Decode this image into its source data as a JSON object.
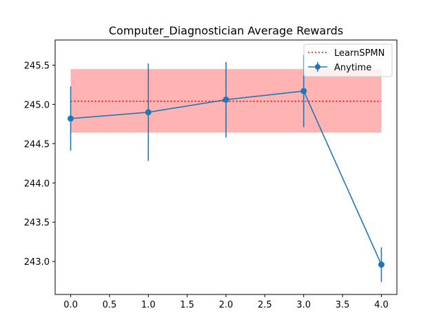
{
  "chart_data": {
    "type": "line",
    "title": "Computer_Diagnostician Average Rewards",
    "xlabel": "",
    "ylabel": "",
    "xlim": [
      -0.2,
      4.2
    ],
    "ylim": [
      242.58,
      245.82
    ],
    "x_ticks": [
      0.0,
      0.5,
      1.0,
      1.5,
      2.0,
      2.5,
      3.0,
      3.5,
      4.0
    ],
    "x_tick_labels": [
      "0.0",
      "0.5",
      "1.0",
      "1.5",
      "2.0",
      "2.5",
      "3.0",
      "3.5",
      "4.0"
    ],
    "y_ticks": [
      243.0,
      243.5,
      244.0,
      244.5,
      245.0,
      245.5
    ],
    "y_tick_labels": [
      "243.0",
      "243.5",
      "244.0",
      "244.5",
      "245.0",
      "245.5"
    ],
    "grid": false,
    "legend_position": "top-right",
    "series": [
      {
        "name": "Anytime",
        "style": "errorbar-line",
        "color": "#1f77b4",
        "x": [
          0,
          1,
          2,
          3,
          4
        ],
        "y": [
          244.82,
          244.9,
          245.06,
          245.17,
          242.96
        ],
        "yerr": [
          0.41,
          0.62,
          0.48,
          0.46,
          0.22
        ]
      },
      {
        "name": "LearnSPMN",
        "style": "dotted-hline-with-band",
        "color": "#ff0000",
        "band_color": "#ff8080",
        "x_range": [
          0,
          4
        ],
        "y": 245.04,
        "band": [
          244.64,
          245.45
        ]
      }
    ]
  }
}
